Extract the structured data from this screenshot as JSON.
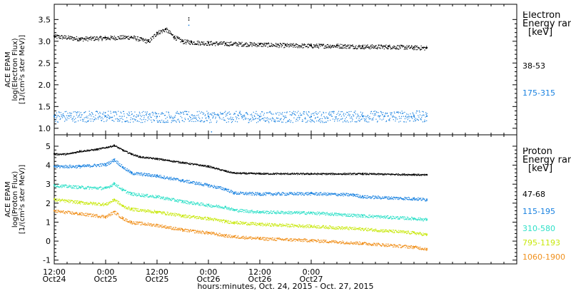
{
  "chart_data": [
    {
      "type": "scatter",
      "panel": "electron",
      "ylabel_lines": [
        "ACE EPAM",
        "log(Electron Flux)",
        "[1/(cm²s ster MeV)]"
      ],
      "ylim": [
        0.85,
        3.85
      ],
      "yticks": [
        1.0,
        1.5,
        2.0,
        2.5,
        3.0,
        3.5
      ],
      "ytick_labels": [
        "1.0",
        "1.5",
        "2.0",
        "2.5",
        "3.0",
        "3.5"
      ],
      "legend_title": [
        "Electron",
        "Energy range",
        "[keV]"
      ],
      "series": [
        {
          "name": "38-53",
          "color": "#000000",
          "x_hours": [
            0,
            6,
            12,
            18,
            22,
            24,
            26,
            28,
            30,
            32,
            36,
            40,
            48,
            54,
            60,
            66,
            72,
            78,
            84,
            87
          ],
          "y": [
            3.12,
            3.06,
            3.08,
            3.1,
            3.0,
            3.2,
            3.28,
            3.1,
            3.0,
            2.98,
            2.96,
            2.95,
            2.93,
            2.91,
            2.9,
            2.9,
            2.88,
            2.88,
            2.86,
            2.85
          ]
        },
        {
          "name": "175-315",
          "color": "#1a82e0",
          "x_hours": [
            0,
            12,
            24,
            36,
            48,
            60,
            72,
            84,
            87
          ],
          "y": [
            1.28,
            1.28,
            1.27,
            1.27,
            1.27,
            1.27,
            1.28,
            1.28,
            1.28
          ]
        }
      ]
    },
    {
      "type": "scatter",
      "panel": "proton",
      "ylabel_lines": [
        "ACE EPAM",
        "log(Proton Flux)",
        "[1/(cm²s ster MeV)]"
      ],
      "ylim": [
        -1.2,
        5.6
      ],
      "yticks": [
        -1,
        0,
        1,
        2,
        3,
        4,
        5
      ],
      "ytick_labels": [
        "-1",
        "0",
        "1",
        "2",
        "3",
        "4",
        "5"
      ],
      "legend_title": [
        "Proton",
        "Energy range",
        "[keV]"
      ],
      "series": [
        {
          "name": "47-68",
          "color": "#000000",
          "x_hours": [
            0,
            3,
            6,
            10,
            14,
            16,
            18,
            20,
            24,
            30,
            36,
            40,
            42,
            46,
            48,
            60,
            72,
            84,
            87
          ],
          "y": [
            4.6,
            4.6,
            4.75,
            4.85,
            5.05,
            4.8,
            4.6,
            4.45,
            4.35,
            4.15,
            3.95,
            3.7,
            3.6,
            3.58,
            3.57,
            3.56,
            3.56,
            3.52,
            3.5
          ],
          "drop_x": [
            2
          ]
        },
        {
          "name": "115-195",
          "color": "#1a82e0",
          "x_hours": [
            0,
            6,
            12,
            14,
            16,
            18,
            24,
            30,
            36,
            40,
            42,
            48,
            60,
            70,
            72,
            84,
            87
          ],
          "y": [
            3.95,
            3.95,
            4.05,
            4.3,
            3.9,
            3.6,
            3.45,
            3.2,
            2.95,
            2.75,
            2.55,
            2.5,
            2.52,
            2.45,
            2.35,
            2.25,
            2.2
          ]
        },
        {
          "name": "310-580",
          "color": "#2fe0c8",
          "x_hours": [
            0,
            6,
            12,
            14,
            16,
            18,
            24,
            30,
            36,
            40,
            42,
            48,
            60,
            72,
            84,
            87
          ],
          "y": [
            2.95,
            2.85,
            2.8,
            3.05,
            2.7,
            2.5,
            2.35,
            2.1,
            1.9,
            1.8,
            1.65,
            1.55,
            1.5,
            1.35,
            1.2,
            1.15
          ]
        },
        {
          "name": "795-1193",
          "color": "#c8e80c",
          "x_hours": [
            0,
            6,
            12,
            14,
            16,
            18,
            24,
            30,
            36,
            40,
            42,
            48,
            60,
            72,
            84,
            87
          ],
          "y": [
            2.2,
            2.05,
            1.95,
            2.2,
            1.85,
            1.7,
            1.55,
            1.35,
            1.2,
            1.05,
            1.0,
            0.9,
            0.8,
            0.65,
            0.45,
            0.35
          ]
        },
        {
          "name": "1060-1900",
          "color": "#f0901c",
          "x_hours": [
            0,
            6,
            12,
            14,
            16,
            18,
            24,
            30,
            36,
            40,
            42,
            48,
            60,
            72,
            84,
            87
          ],
          "y": [
            1.6,
            1.45,
            1.3,
            1.55,
            1.2,
            1.0,
            0.85,
            0.6,
            0.45,
            0.3,
            0.25,
            0.15,
            0.05,
            -0.1,
            -0.3,
            -0.4
          ]
        }
      ]
    }
  ],
  "x_axis": {
    "xlim_hours": [
      0,
      108
    ],
    "ticks": [
      {
        "hour": 0,
        "time": "12:00",
        "date": "Oct24"
      },
      {
        "hour": 12,
        "time": "0:00",
        "date": "Oct25"
      },
      {
        "hour": 24,
        "time": "12:00",
        "date": "Oct25"
      },
      {
        "hour": 36,
        "time": "0:00",
        "date": "Oct26"
      },
      {
        "hour": 48,
        "time": "12:00",
        "date": "Oct26"
      },
      {
        "hour": 60,
        "time": "0:00",
        "date": "Oct27"
      }
    ],
    "label": "hours:minutes, Oct. 24, 2015 - Oct. 27, 2015"
  }
}
